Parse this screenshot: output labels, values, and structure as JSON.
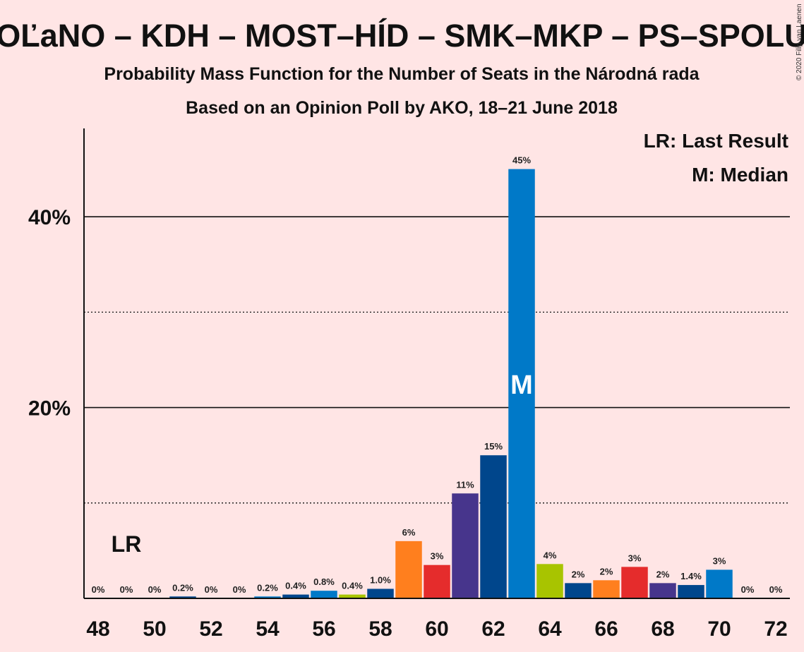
{
  "chart_data": {
    "type": "bar",
    "title": "OĽaNO – KDH – MOST–HÍD – SMK–MKP – PS–SPOLU",
    "subtitle": "Probability Mass Function for the Number of Seats in the Národná rada",
    "subtitle2": "Based on an Opinion Poll by AKO, 18–21 June 2018",
    "copyright": "© 2020 Filip van Laenen",
    "legend": {
      "lr": "LR: Last Result",
      "m": "M: Median"
    },
    "last_result_marker": {
      "label": "LR",
      "seats": 49
    },
    "median_marker": {
      "label": "M",
      "seats": 63
    },
    "xlabel": "",
    "ylabel": "",
    "x_ticks": [
      "48",
      "50",
      "52",
      "54",
      "56",
      "58",
      "60",
      "62",
      "64",
      "66",
      "68",
      "70",
      "72"
    ],
    "y_ticks": [
      {
        "value": 20,
        "label": "20%"
      },
      {
        "value": 40,
        "label": "40%"
      }
    ],
    "dotted_gridlines": [
      10,
      30
    ],
    "ylim": [
      0,
      50
    ],
    "xlim": [
      47.5,
      72.5
    ],
    "bars": [
      {
        "seats": 48,
        "value": 0,
        "label": "0%",
        "color": "#0079c8"
      },
      {
        "seats": 49,
        "value": 0,
        "label": "0%",
        "color": "#0079c8"
      },
      {
        "seats": 50,
        "value": 0,
        "label": "0%",
        "color": "#0079c8"
      },
      {
        "seats": 51,
        "value": 0.2,
        "label": "0.2%",
        "color": "#00468c"
      },
      {
        "seats": 52,
        "value": 0,
        "label": "0%",
        "color": "#0079c8"
      },
      {
        "seats": 53,
        "value": 0,
        "label": "0%",
        "color": "#0079c8"
      },
      {
        "seats": 54,
        "value": 0.2,
        "label": "0.2%",
        "color": "#0079c8"
      },
      {
        "seats": 55,
        "value": 0.4,
        "label": "0.4%",
        "color": "#00468c"
      },
      {
        "seats": 56,
        "value": 0.8,
        "label": "0.8%",
        "color": "#0079c8"
      },
      {
        "seats": 57,
        "value": 0.4,
        "label": "0.4%",
        "color": "#a8c400"
      },
      {
        "seats": 58,
        "value": 1.0,
        "label": "1.0%",
        "color": "#00468c"
      },
      {
        "seats": 59,
        "value": 6,
        "label": "6%",
        "color": "#ff7f1e"
      },
      {
        "seats": 60,
        "value": 3.5,
        "label": "3%",
        "color": "#e52c2c"
      },
      {
        "seats": 61,
        "value": 11,
        "label": "11%",
        "color": "#47358c"
      },
      {
        "seats": 62,
        "value": 15,
        "label": "15%",
        "color": "#00468c"
      },
      {
        "seats": 63,
        "value": 45,
        "label": "45%",
        "color": "#0079c8"
      },
      {
        "seats": 64,
        "value": 3.6,
        "label": "4%",
        "color": "#a8c400"
      },
      {
        "seats": 65,
        "value": 1.6,
        "label": "2%",
        "color": "#00468c"
      },
      {
        "seats": 66,
        "value": 1.9,
        "label": "2%",
        "color": "#ff7f1e"
      },
      {
        "seats": 67,
        "value": 3.3,
        "label": "3%",
        "color": "#e52c2c"
      },
      {
        "seats": 68,
        "value": 1.6,
        "label": "2%",
        "color": "#47358c"
      },
      {
        "seats": 69,
        "value": 1.4,
        "label": "1.4%",
        "color": "#00468c"
      },
      {
        "seats": 70,
        "value": 3,
        "label": "3%",
        "color": "#0079c8"
      },
      {
        "seats": 71,
        "value": 0,
        "label": "0%",
        "color": "#0079c8"
      },
      {
        "seats": 72,
        "value": 0,
        "label": "0%",
        "color": "#0079c8"
      }
    ]
  }
}
